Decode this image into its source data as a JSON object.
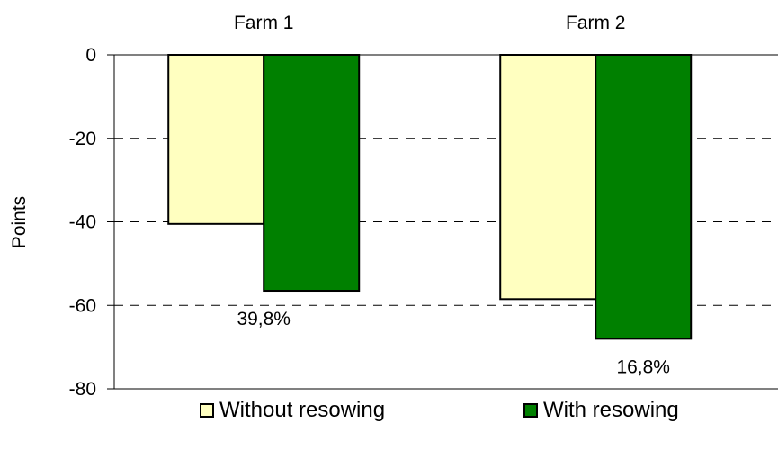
{
  "chart_data": {
    "type": "bar",
    "categories": [
      "Farm 1",
      "Farm 2"
    ],
    "series": [
      {
        "name": "Without resowing",
        "values": [
          -40.5,
          -58.5
        ],
        "color": "#ffffc0"
      },
      {
        "name": "With resowing",
        "values": [
          -56.5,
          -68
        ],
        "color": "#008000"
      }
    ],
    "ylabel": "Points",
    "ylim": [
      -80,
      0
    ],
    "yticks": [
      0,
      -20,
      -40,
      -60,
      -80
    ],
    "yticklabels": [
      "0",
      "-20",
      "-40",
      "-60",
      "-80"
    ],
    "grid": "dashed horizontal",
    "annotations": [
      {
        "category": "Farm 1",
        "text": "39,8%"
      },
      {
        "category": "Farm 2",
        "text": "16,8%"
      }
    ],
    "legend": {
      "position": "bottom",
      "items": [
        "Without resowing",
        "With resowing"
      ]
    },
    "category_label_position": "top"
  }
}
